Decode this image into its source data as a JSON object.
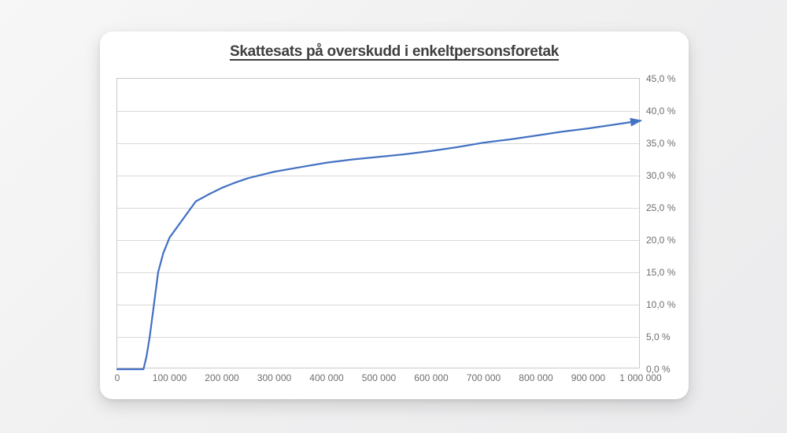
{
  "card": {
    "background": "#ffffff"
  },
  "chart_data": {
    "type": "line",
    "title": "Skattesats på overskudd i enkeltpersonsforetak",
    "xlabel": "",
    "ylabel": "",
    "xlim": [
      0,
      1000000
    ],
    "ylim": [
      0,
      45
    ],
    "grid": "horizontal",
    "legend": "none",
    "arrow_end": true,
    "line_color": "#4472C4",
    "gridline_color": "#d9d9d9",
    "plot_border_color": "#c9c9c9",
    "axis_label_color": "#6e6e6e",
    "title_color": "#3f3f3f",
    "series": [
      {
        "name": "Skattesats",
        "x": [
          0,
          50000,
          56000,
          62000,
          70000,
          78000,
          88000,
          100000,
          125000,
          150000,
          175000,
          200000,
          225000,
          250000,
          275000,
          300000,
          350000,
          400000,
          450000,
          500000,
          550000,
          600000,
          650000,
          700000,
          750000,
          800000,
          850000,
          900000,
          950000,
          1000000
        ],
        "y": [
          0,
          0,
          2.0,
          5.0,
          10.0,
          15.0,
          18.0,
          20.4,
          23.2,
          26.0,
          27.1,
          28.1,
          28.9,
          29.6,
          30.1,
          30.6,
          31.3,
          32.0,
          32.5,
          32.9,
          33.3,
          33.8,
          34.4,
          35.1,
          35.6,
          36.2,
          36.8,
          37.3,
          37.9,
          38.5
        ]
      }
    ],
    "x_ticks": {
      "values": [
        0,
        100000,
        200000,
        300000,
        400000,
        500000,
        600000,
        700000,
        800000,
        900000,
        1000000
      ],
      "labels": [
        "0",
        "100 000",
        "200 000",
        "300 000",
        "400 000",
        "500 000",
        "600 000",
        "700 000",
        "800 000",
        "900 000",
        "1 000 000"
      ]
    },
    "y_ticks": {
      "values": [
        0,
        5,
        10,
        15,
        20,
        25,
        30,
        35,
        40,
        45
      ],
      "labels": [
        "0,0 %",
        "5,0 %",
        "10,0 %",
        "15,0 %",
        "20,0 %",
        "25,0 %",
        "30,0 %",
        "35,0 %",
        "40,0 %",
        "45,0 %"
      ]
    }
  }
}
